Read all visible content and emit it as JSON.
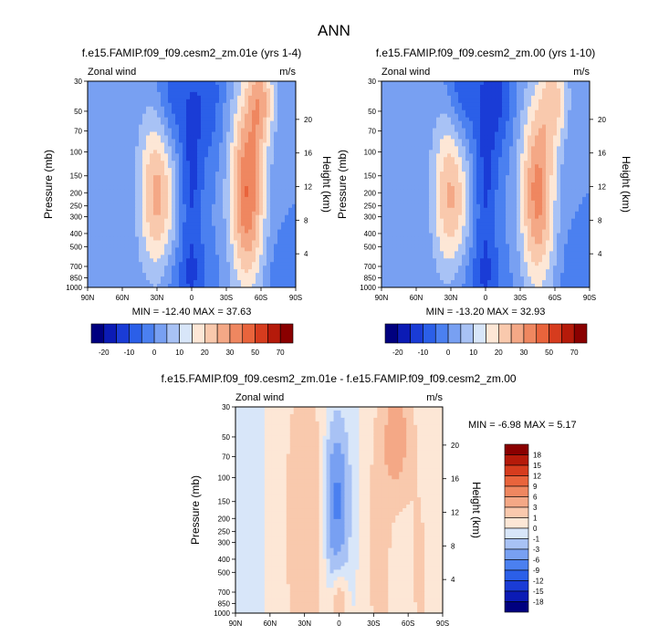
{
  "figure_title": "ANN",
  "colors": {
    "neg": [
      "#00007f",
      "#0b1bb5",
      "#1a3cd6",
      "#2b5fe8",
      "#4b80f0",
      "#78a0f2",
      "#a8c2f5",
      "#d8e6f9"
    ],
    "pos": [
      "#fde7d6",
      "#f9c9ad",
      "#f4a886",
      "#ef8760",
      "#e9643c",
      "#d63c1e",
      "#b51a0a",
      "#8a0000"
    ],
    "diff": [
      "#00007f",
      "#0b1bb5",
      "#1a3cd6",
      "#2b5fe8",
      "#4b80f0",
      "#78a0f2",
      "#a8c2f5",
      "#d8e6f9",
      "#fde7d6",
      "#f9c9ad",
      "#f4a886",
      "#ef8760",
      "#e9643c",
      "#d63c1e",
      "#b51a0a",
      "#8a0000"
    ]
  },
  "chart_data": [
    {
      "type": "heatmap",
      "id": "p1",
      "title": "f.e15.FAMIP.f09_f09.cesm2_zm.01e (yrs 1-4)",
      "left_label": "Zonal wind",
      "right_label": "m/s",
      "ylabel": "Pressure (mb)",
      "ylabel_right": "Height (km)",
      "x_ticks": [
        "90N",
        "60N",
        "30N",
        "0",
        "30S",
        "60S",
        "90S"
      ],
      "x_range": [
        90,
        -90
      ],
      "y_ticks": [
        30,
        50,
        70,
        100,
        150,
        200,
        250,
        300,
        400,
        500,
        700,
        850,
        1000
      ],
      "y_range": [
        30,
        1000
      ],
      "height_ticks": [
        20,
        16,
        12,
        8,
        4
      ],
      "stats": "MIN = -12.40   MAX = 37.63",
      "min": -12.4,
      "max": 37.63,
      "colorbar_levels": [
        "-20",
        "-10",
        "0",
        "10",
        "20",
        "30",
        "50",
        "70"
      ],
      "features": [
        {
          "lat": 30,
          "p": 200,
          "amp": 22,
          "wlat": 16,
          "wlogp": 0.62
        },
        {
          "lat": -48,
          "p": 200,
          "amp": 30,
          "wlat": 15,
          "wlogp": 0.7
        },
        {
          "lat": -60,
          "p": 40,
          "amp": 18,
          "wlat": 12,
          "wlogp": 0.35
        },
        {
          "lat": 0,
          "p": 150,
          "amp": -11,
          "wlat": 10,
          "wlogp": 0.9
        },
        {
          "lat": 18,
          "p": 40,
          "amp": -9,
          "wlat": 14,
          "wlogp": 0.45
        },
        {
          "lat": -15,
          "p": 40,
          "amp": -8,
          "wlat": 12,
          "wlogp": 0.45
        },
        {
          "lat": 5,
          "p": 900,
          "amp": -6,
          "wlat": 22,
          "wlogp": 0.3
        },
        {
          "lat": -75,
          "p": 900,
          "amp": -4,
          "wlat": 10,
          "wlogp": 0.3
        }
      ]
    },
    {
      "type": "heatmap",
      "id": "p2",
      "title": "f.e15.FAMIP.f09_f09.cesm2_zm.00 (yrs 1-10)",
      "left_label": "Zonal wind",
      "right_label": "m/s",
      "ylabel": "Pressure (mb)",
      "ylabel_right": "Height (km)",
      "x_ticks": [
        "90N",
        "60N",
        "30N",
        "0",
        "30S",
        "60S",
        "90S"
      ],
      "x_range": [
        90,
        -90
      ],
      "y_ticks": [
        30,
        50,
        70,
        100,
        150,
        200,
        250,
        300,
        400,
        500,
        700,
        850,
        1000
      ],
      "y_range": [
        30,
        1000
      ],
      "height_ticks": [
        20,
        16,
        12,
        8,
        4
      ],
      "stats": "MIN = -13.20   MAX = 32.93",
      "min": -13.2,
      "max": 32.93,
      "colorbar_levels": [
        "-20",
        "-10",
        "0",
        "10",
        "20",
        "30",
        "50",
        "70"
      ],
      "features": [
        {
          "lat": 30,
          "p": 200,
          "amp": 21,
          "wlat": 16,
          "wlogp": 0.62
        },
        {
          "lat": -45,
          "p": 200,
          "amp": 27,
          "wlat": 15,
          "wlogp": 0.7
        },
        {
          "lat": -60,
          "p": 40,
          "amp": 15,
          "wlat": 12,
          "wlogp": 0.35
        },
        {
          "lat": 0,
          "p": 150,
          "amp": -11,
          "wlat": 10,
          "wlogp": 0.9
        },
        {
          "lat": 20,
          "p": 35,
          "amp": -11,
          "wlat": 14,
          "wlogp": 0.45
        },
        {
          "lat": -12,
          "p": 35,
          "amp": -10,
          "wlat": 12,
          "wlogp": 0.45
        },
        {
          "lat": 5,
          "p": 900,
          "amp": -6,
          "wlat": 22,
          "wlogp": 0.3
        },
        {
          "lat": -75,
          "p": 900,
          "amp": -4,
          "wlat": 10,
          "wlogp": 0.3
        }
      ]
    },
    {
      "type": "heatmap",
      "id": "p3",
      "title": "f.e15.FAMIP.f09_f09.cesm2_zm.01e - f.e15.FAMIP.f09_f09.cesm2_zm.00",
      "left_label": "Zonal wind",
      "right_label": "m/s",
      "ylabel": "Pressure (mb)",
      "ylabel_right": "Height (km)",
      "x_ticks": [
        "90N",
        "60N",
        "30N",
        "0",
        "30S",
        "60S",
        "90S"
      ],
      "x_range": [
        90,
        -90
      ],
      "y_ticks": [
        30,
        50,
        70,
        100,
        150,
        200,
        250,
        300,
        400,
        500,
        700,
        850,
        1000
      ],
      "y_range": [
        30,
        1000
      ],
      "height_ticks": [
        20,
        16,
        12,
        8,
        4
      ],
      "stats": "MIN =  -6.98   MAX =   5.17",
      "min": -6.98,
      "max": 5.17,
      "colorbar_levels": [
        "18",
        "15",
        "12",
        "9",
        "6",
        "3",
        "1",
        "0",
        "-1",
        "-3",
        "-6",
        "-9",
        "-12",
        "-15",
        "-18"
      ],
      "features": [
        {
          "lat": 2,
          "p": 150,
          "amp": -6.9,
          "wlat": 9,
          "wlogp": 0.5
        },
        {
          "lat": -50,
          "p": 50,
          "amp": 4.5,
          "wlat": 12,
          "wlogp": 0.45
        },
        {
          "lat": 30,
          "p": 200,
          "amp": 2.2,
          "wlat": 18,
          "wlogp": 1.2
        },
        {
          "lat": -35,
          "p": 300,
          "amp": 2.0,
          "wlat": 10,
          "wlogp": 0.9
        },
        {
          "lat": 0,
          "p": 800,
          "amp": 2.5,
          "wlat": 6,
          "wlogp": 0.3
        },
        {
          "lat": -70,
          "p": 500,
          "amp": 1.2,
          "wlat": 10,
          "wlogp": 1.0
        },
        {
          "lat": 78,
          "p": 200,
          "amp": -0.8,
          "wlat": 8,
          "wlogp": 1.5
        }
      ]
    }
  ]
}
